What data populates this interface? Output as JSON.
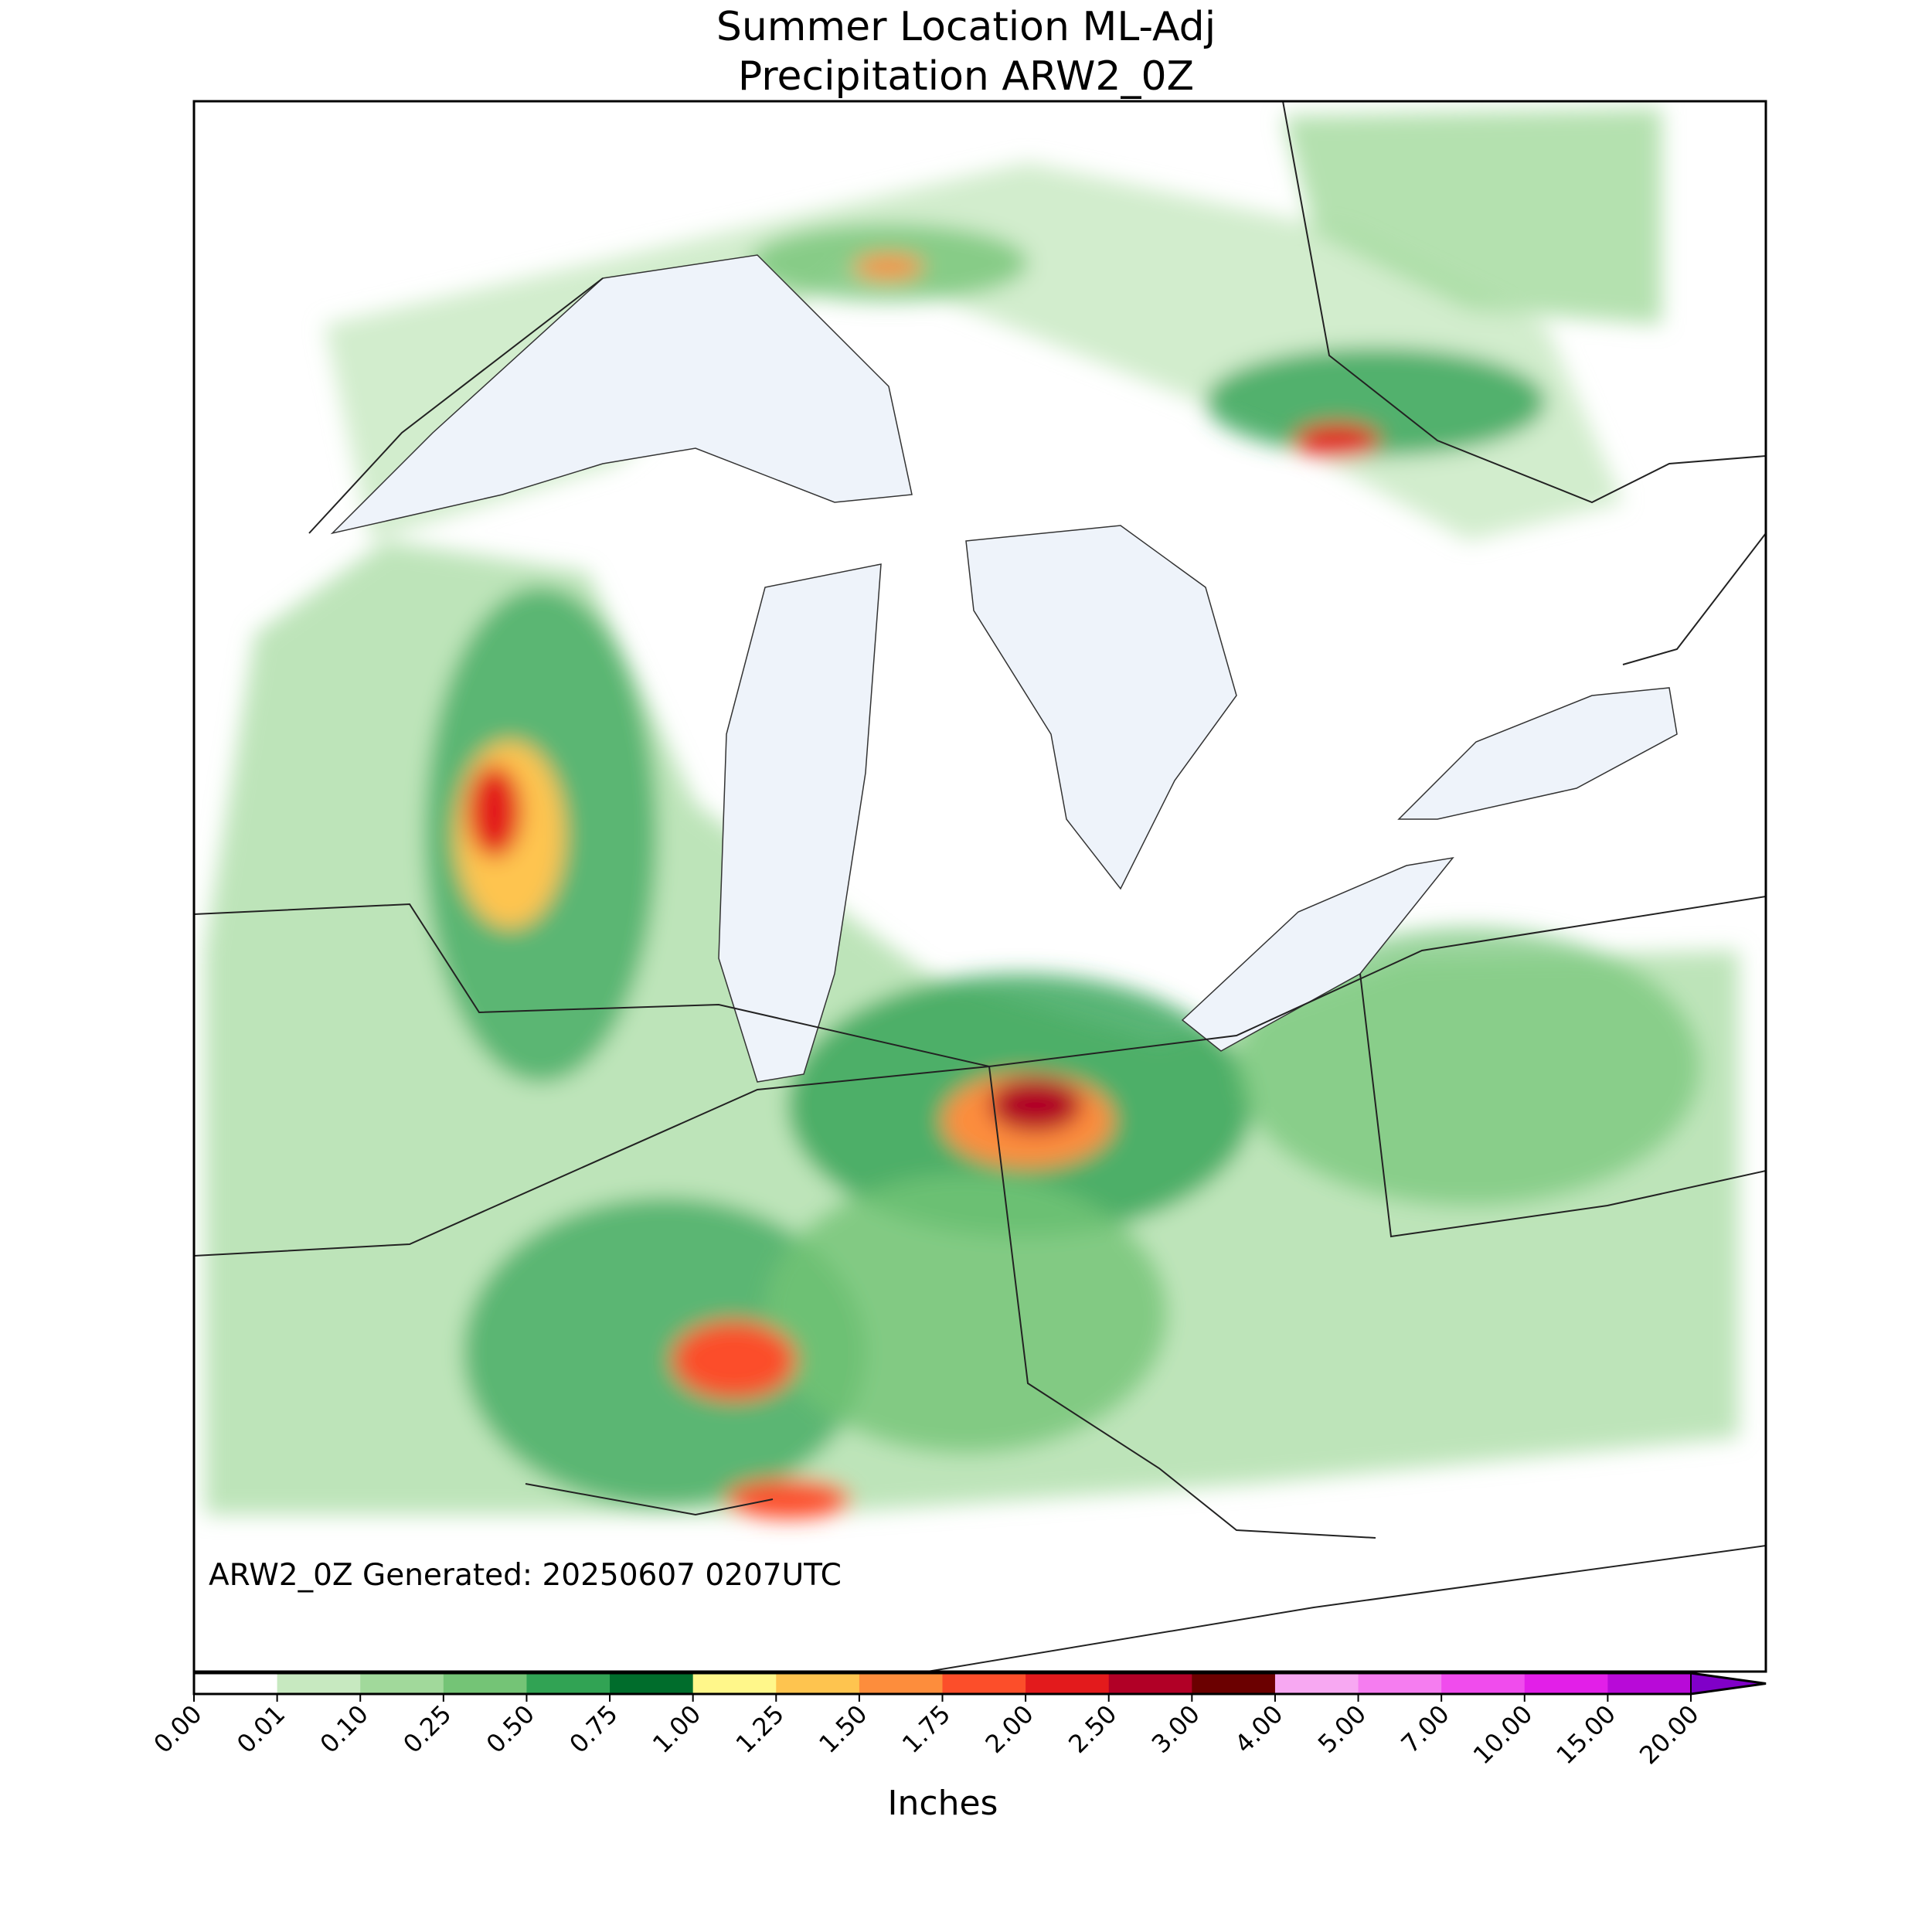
{
  "title": [
    "Summer Location ML-Adj",
    "Precipitation ARW2_0Z"
  ],
  "annotation": "ARW2_0Z Generated: 20250607 0207UTC",
  "colorbar": {
    "label": "Inches",
    "ticks": [
      "0.00",
      "0.01",
      "0.10",
      "0.25",
      "0.50",
      "0.75",
      "1.00",
      "1.25",
      "1.50",
      "1.75",
      "2.00",
      "2.50",
      "3.00",
      "4.00",
      "5.00",
      "7.00",
      "10.00",
      "15.00",
      "20.00"
    ],
    "colors": [
      "#ffffff",
      "#c7e9c0",
      "#a1d99b",
      "#74c476",
      "#31a354",
      "#006d2c",
      "#fff78a",
      "#fec44f",
      "#fd8d3c",
      "#fc4e2a",
      "#e31a1c",
      "#b10026",
      "#6b0000",
      "#f7a8f2",
      "#f57df0",
      "#f04ced",
      "#e21fe8",
      "#b80ad8"
    ],
    "extend_color": "#8000c8"
  }
}
